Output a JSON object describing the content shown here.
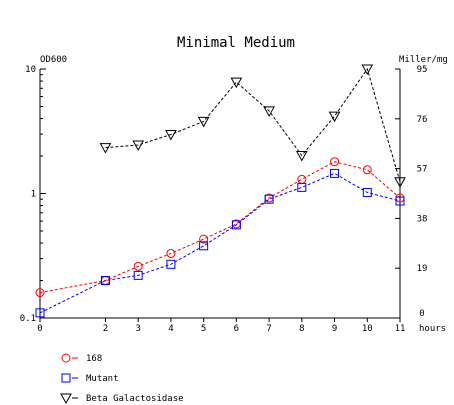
{
  "chart_data": {
    "type": "line",
    "title": "Minimal Medium",
    "x": [
      0,
      2,
      3,
      4,
      5,
      6,
      7,
      8,
      9,
      10,
      11
    ],
    "xlabel": "hours",
    "xlim": [
      0,
      11
    ],
    "xticks": [
      0,
      2,
      3,
      4,
      5,
      6,
      7,
      8,
      9,
      10,
      11
    ],
    "ylabel_left": "OD600",
    "ylim_left": [
      0.1,
      10
    ],
    "yscale_left": "log",
    "yticks_left": [
      0.1,
      1,
      10
    ],
    "ylabel_right": "Miller/mg",
    "ylim_right": [
      0,
      95
    ],
    "yticks_right": [
      0,
      19,
      38,
      57,
      76,
      95
    ],
    "grid": false,
    "legend_position": "bottom-left",
    "series": [
      {
        "name": "168",
        "axis": "left",
        "color": "#ff0000",
        "marker": "circle",
        "x": [
          0,
          2,
          3,
          4,
          5,
          6,
          7,
          8,
          9,
          10,
          11
        ],
        "values": [
          0.16,
          0.2,
          0.26,
          0.33,
          0.43,
          0.57,
          0.92,
          1.3,
          1.8,
          1.55,
          0.92
        ]
      },
      {
        "name": "Mutant",
        "axis": "left",
        "color": "#0000ff",
        "marker": "square",
        "x": [
          0,
          2,
          3,
          4,
          5,
          6,
          7,
          8,
          9,
          10,
          11
        ],
        "values": [
          0.11,
          0.2,
          0.22,
          0.27,
          0.38,
          0.56,
          0.9,
          1.12,
          1.45,
          1.02,
          0.87
        ]
      },
      {
        "name": "Beta Galactosidase",
        "axis": "right",
        "color": "#000000",
        "marker": "triangle-down",
        "x": [
          2,
          3,
          4,
          5,
          6,
          7,
          8,
          9,
          10,
          11
        ],
        "values": [
          65,
          66,
          70,
          75,
          90,
          79,
          62,
          77,
          95,
          52
        ]
      }
    ]
  }
}
